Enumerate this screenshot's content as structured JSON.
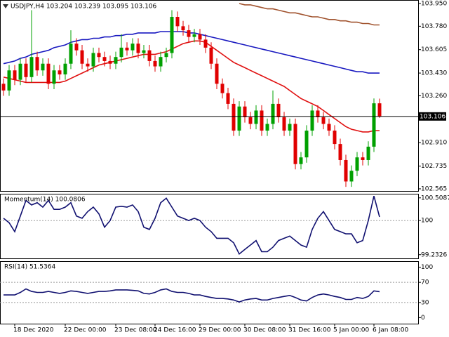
{
  "chart_data": [
    {
      "type": "candlestick",
      "title": "USDJPY,H4 103.204 103.239 103.095 103.106",
      "categories": [
        null,
        null,
        "18 Dec 2020",
        null,
        null,
        null,
        null,
        null,
        null,
        null,
        null,
        "22 Dec 00:00",
        null,
        null,
        null,
        null,
        null,
        null,
        null,
        null,
        "23 Dec 08:00",
        null,
        null,
        null,
        null,
        null,
        null,
        "24 Dec 16:00",
        null,
        null,
        null,
        null,
        null,
        null,
        null,
        "29 Dec 00:00",
        null,
        null,
        null,
        null,
        null,
        null,
        null,
        "30 Dec 08:00",
        null,
        null,
        null,
        null,
        null,
        null,
        null,
        "31 Dec 16:00",
        null,
        null,
        null,
        null,
        null,
        null,
        null,
        "5 Jan 00:00",
        null,
        null,
        null,
        null,
        null,
        null,
        "6 Jan 08:00",
        null
      ],
      "open": [
        103.35,
        103.3,
        103.45,
        103.38,
        103.5,
        103.4,
        103.55,
        103.45,
        103.5,
        103.35,
        103.45,
        103.42,
        103.5,
        103.65,
        103.6,
        103.5,
        103.48,
        103.58,
        103.55,
        103.52,
        103.5,
        103.55,
        103.62,
        103.6,
        103.65,
        103.58,
        103.6,
        103.52,
        103.48,
        103.55,
        103.58,
        103.85,
        103.78,
        103.75,
        103.7,
        103.72,
        103.68,
        103.62,
        103.5,
        103.35,
        103.28,
        103.2,
        103.0,
        103.18,
        103.1,
        103.05,
        103.15,
        103.0,
        103.05,
        103.2,
        103.1,
        103.0,
        103.05,
        102.75,
        102.8,
        103.0,
        103.15,
        103.1,
        103.05,
        103.0,
        102.9,
        102.78,
        102.62,
        102.7,
        102.8,
        102.78,
        102.88,
        103.204
      ],
      "high": [
        103.39,
        103.49,
        103.49,
        103.54,
        103.54,
        103.9,
        103.59,
        103.54,
        103.54,
        103.49,
        103.49,
        103.54,
        103.75,
        103.69,
        103.64,
        103.54,
        103.62,
        103.62,
        103.59,
        103.56,
        103.59,
        103.72,
        103.66,
        103.69,
        103.69,
        103.64,
        103.64,
        103.56,
        103.59,
        103.62,
        103.9,
        103.89,
        103.82,
        103.79,
        103.76,
        103.76,
        103.72,
        103.66,
        103.54,
        103.39,
        103.32,
        103.24,
        103.22,
        103.22,
        103.14,
        103.19,
        103.19,
        103.09,
        103.3,
        103.24,
        103.14,
        103.09,
        103.09,
        102.84,
        103.04,
        103.19,
        103.19,
        103.14,
        103.09,
        103.04,
        102.94,
        102.82,
        102.74,
        102.84,
        102.84,
        102.92,
        103.24,
        103.239
      ],
      "low": [
        103.26,
        103.26,
        103.34,
        103.34,
        103.36,
        103.36,
        103.41,
        103.41,
        103.31,
        103.31,
        103.38,
        103.38,
        103.46,
        103.56,
        103.46,
        103.44,
        103.44,
        103.51,
        103.48,
        103.46,
        103.46,
        103.51,
        103.56,
        103.56,
        103.54,
        103.54,
        103.48,
        103.44,
        103.44,
        103.51,
        103.54,
        103.74,
        103.71,
        103.66,
        103.66,
        103.64,
        103.58,
        103.46,
        103.31,
        103.24,
        103.16,
        102.96,
        102.96,
        103.06,
        103.01,
        103.01,
        102.96,
        102.96,
        103.01,
        103.06,
        102.96,
        102.96,
        102.71,
        102.71,
        102.76,
        102.96,
        103.06,
        103.01,
        102.96,
        102.86,
        102.74,
        102.58,
        102.58,
        102.66,
        102.74,
        102.74,
        102.84,
        103.095
      ],
      "close": [
        103.3,
        103.45,
        103.38,
        103.5,
        103.4,
        103.55,
        103.45,
        103.5,
        103.35,
        103.45,
        103.42,
        103.5,
        103.65,
        103.6,
        103.5,
        103.48,
        103.58,
        103.55,
        103.52,
        103.5,
        103.55,
        103.62,
        103.6,
        103.65,
        103.58,
        103.6,
        103.52,
        103.48,
        103.55,
        103.58,
        103.85,
        103.78,
        103.75,
        103.7,
        103.72,
        103.68,
        103.62,
        103.5,
        103.35,
        103.28,
        103.2,
        103.0,
        103.18,
        103.1,
        103.05,
        103.15,
        103.0,
        103.05,
        103.2,
        103.1,
        103.0,
        103.05,
        102.75,
        102.8,
        103.0,
        103.15,
        103.1,
        103.05,
        103.0,
        102.9,
        102.78,
        102.62,
        102.7,
        102.8,
        102.78,
        102.88,
        103.204,
        103.106
      ],
      "up_color": "#00a000",
      "down_color": "#e00000",
      "lines": [
        {
          "color": "#e01010",
          "values": [
            103.4,
            103.39,
            103.38,
            103.37,
            103.36,
            103.36,
            103.36,
            103.36,
            103.36,
            103.36,
            103.36,
            103.37,
            103.39,
            103.41,
            103.43,
            103.45,
            103.47,
            103.49,
            103.5,
            103.51,
            103.52,
            103.53,
            103.54,
            103.55,
            103.56,
            103.57,
            103.57,
            103.57,
            103.58,
            103.59,
            103.61,
            103.63,
            103.65,
            103.66,
            103.67,
            103.67,
            103.66,
            103.63,
            103.6,
            103.57,
            103.54,
            103.51,
            103.49,
            103.47,
            103.45,
            103.43,
            103.41,
            103.39,
            103.37,
            103.35,
            103.33,
            103.3,
            103.27,
            103.24,
            103.22,
            103.2,
            103.18,
            103.15,
            103.12,
            103.09,
            103.06,
            103.03,
            103.01,
            103.0,
            102.99,
            102.99,
            103.0,
            103.0
          ]
        },
        {
          "color": "#1818c0",
          "values": [
            103.5,
            103.51,
            103.52,
            103.54,
            103.55,
            103.57,
            103.58,
            103.59,
            103.6,
            103.62,
            103.63,
            103.64,
            103.66,
            103.67,
            103.68,
            103.68,
            103.69,
            103.69,
            103.7,
            103.7,
            103.71,
            103.71,
            103.72,
            103.72,
            103.73,
            103.73,
            103.73,
            103.73,
            103.74,
            103.74,
            103.74,
            103.74,
            103.74,
            103.73,
            103.73,
            103.72,
            103.71,
            103.7,
            103.69,
            103.68,
            103.67,
            103.66,
            103.65,
            103.64,
            103.63,
            103.62,
            103.61,
            103.6,
            103.59,
            103.58,
            103.57,
            103.56,
            103.55,
            103.54,
            103.53,
            103.52,
            103.51,
            103.5,
            103.49,
            103.48,
            103.47,
            103.46,
            103.45,
            103.44,
            103.44,
            103.43,
            103.43,
            103.43
          ]
        },
        {
          "color": "#a0522d",
          "values": [
            null,
            null,
            null,
            null,
            null,
            null,
            null,
            null,
            null,
            null,
            null,
            null,
            null,
            null,
            null,
            null,
            null,
            null,
            null,
            null,
            null,
            null,
            null,
            null,
            null,
            null,
            null,
            null,
            null,
            null,
            null,
            null,
            null,
            null,
            null,
            null,
            null,
            null,
            null,
            null,
            null,
            null,
            103.95,
            103.94,
            103.94,
            103.93,
            103.92,
            103.91,
            103.91,
            103.9,
            103.89,
            103.88,
            103.88,
            103.87,
            103.86,
            103.85,
            103.85,
            103.84,
            103.83,
            103.83,
            103.82,
            103.82,
            103.81,
            103.81,
            103.8,
            103.8,
            103.79,
            103.79
          ]
        }
      ],
      "ylim": [
        102.549,
        103.976
      ],
      "yticks": [
        {
          "value": 103.95,
          "label": "103.950"
        },
        {
          "value": 103.78,
          "label": "103.780"
        },
        103.605,
        {
          "value": 103.43,
          "label": "103.430"
        },
        {
          "value": 103.26,
          "label": "103.260"
        },
        {
          "value": 102.91,
          "label": "102.910"
        },
        102.735,
        102.565
      ],
      "current_price": 103.106
    },
    {
      "type": "line",
      "title": "Momentum(14) 100.0806",
      "color": "#101070",
      "values": [
        100.05,
        99.95,
        99.75,
        100.1,
        100.45,
        100.35,
        100.4,
        100.3,
        100.45,
        100.25,
        100.25,
        100.3,
        100.4,
        100.1,
        100.05,
        100.2,
        100.3,
        100.15,
        99.85,
        100.0,
        100.3,
        100.32,
        100.3,
        100.35,
        100.2,
        99.85,
        99.8,
        100.05,
        100.4,
        100.5,
        100.3,
        100.1,
        100.05,
        100.0,
        100.05,
        100.0,
        99.85,
        99.75,
        99.6,
        99.6,
        99.6,
        99.5,
        99.25,
        99.35,
        99.45,
        99.55,
        99.3,
        99.3,
        99.4,
        99.55,
        99.6,
        99.65,
        99.55,
        99.45,
        99.4,
        99.8,
        100.05,
        100.2,
        100.0,
        99.8,
        99.75,
        99.7,
        99.7,
        99.5,
        99.55,
        100.0,
        100.55,
        100.0806
      ],
      "ylim": [
        99.15,
        100.6
      ],
      "yticks": [
        100.5087,
        100,
        99.2326
      ],
      "reference_lines": [
        100
      ]
    },
    {
      "type": "line",
      "title": "RSI(14) 51.5364",
      "color": "#101070",
      "values": [
        45,
        45,
        45,
        50,
        57,
        52,
        50,
        50,
        52,
        50,
        48,
        50,
        53,
        52,
        50,
        48,
        50,
        52,
        52,
        53,
        55,
        55,
        55,
        54,
        53,
        48,
        47,
        50,
        55,
        57,
        52,
        50,
        50,
        48,
        45,
        45,
        42,
        40,
        38,
        38,
        37,
        35,
        31,
        35,
        37,
        38,
        35,
        35,
        38,
        40,
        42,
        44,
        40,
        35,
        33,
        40,
        45,
        47,
        45,
        42,
        40,
        36,
        36,
        40,
        38,
        42,
        53,
        51.5364
      ],
      "ylim": [
        -12,
        112
      ],
      "yticks": [
        100,
        70,
        30,
        0
      ],
      "reference_lines": [
        70,
        30
      ]
    }
  ]
}
